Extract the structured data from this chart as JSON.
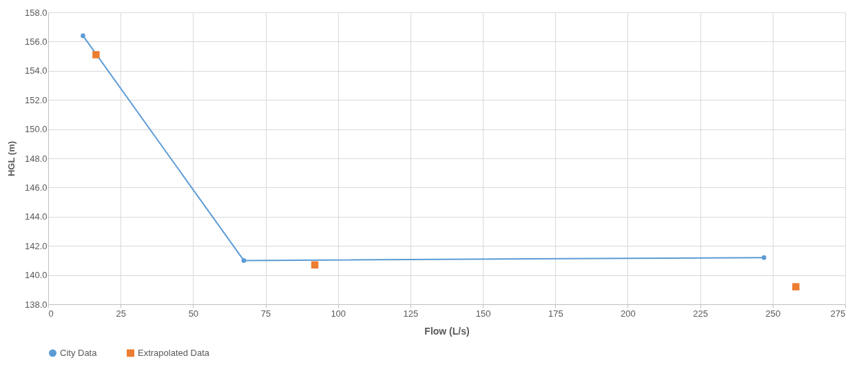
{
  "chart_data": {
    "type": "line",
    "xlabel": "Flow (L/s)",
    "ylabel": "HGL (m)",
    "xlim": [
      0,
      275
    ],
    "xticks": [
      0,
      25,
      50,
      75,
      100,
      125,
      150,
      175,
      200,
      225,
      250,
      275
    ],
    "ylim": [
      138,
      158
    ],
    "yticks": [
      {
        "value": 138,
        "label": "138.0"
      },
      {
        "value": 140,
        "label": "140.0"
      },
      {
        "value": 142,
        "label": "142.0"
      },
      {
        "value": 144,
        "label": "144.0"
      },
      {
        "value": 146,
        "label": "146.0"
      },
      {
        "value": 148,
        "label": "148.0"
      },
      {
        "value": 150,
        "label": "150.0"
      },
      {
        "value": 152,
        "label": "152.0"
      },
      {
        "value": 154,
        "label": "154.0"
      },
      {
        "value": 156,
        "label": "156.0"
      },
      {
        "value": 158,
        "label": "158.0"
      }
    ],
    "grid": true,
    "legend": "bottom",
    "series": [
      {
        "name": "City Data",
        "marker": "circle",
        "color": "#5b9bd5",
        "x": [
          12,
          67.5,
          247
        ],
        "values": [
          156.4,
          141.0,
          141.2
        ]
      },
      {
        "name": "Extrapolated Data",
        "type": "scatter",
        "marker": "square",
        "color": "#ed7d31",
        "x": [
          16.5,
          92,
          258
        ],
        "values": [
          155.1,
          140.7,
          139.2
        ]
      }
    ]
  }
}
